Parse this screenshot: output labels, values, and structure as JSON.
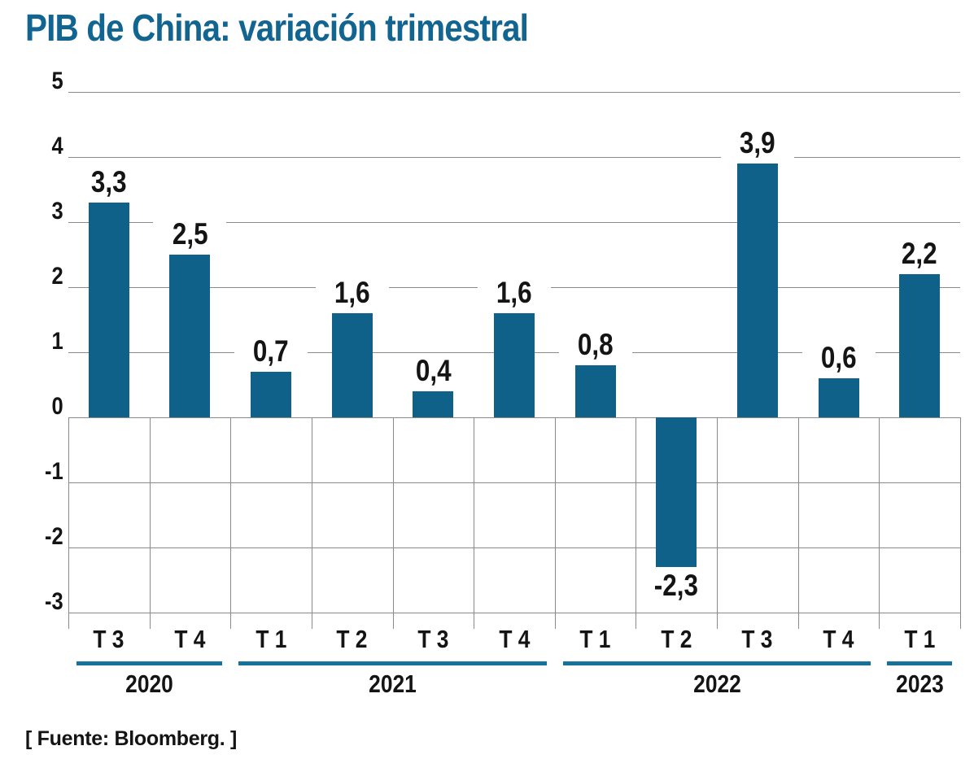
{
  "title": "PIB de China: variación trimestral",
  "source_note": "[ Fuente: Bloomberg. ]",
  "colors": {
    "bar_teal": "#0f6189",
    "title_teal": "#116590",
    "underline_teal": "#16719b",
    "gridline_gray": "#8a8a8a",
    "text_black": "#141414"
  },
  "chart_data": {
    "type": "bar",
    "title": "PIB de China: variación trimestral",
    "xlabel": "",
    "ylabel": "",
    "ylim": [
      -3,
      5
    ],
    "y_ticks": [
      5,
      4,
      3,
      2,
      1,
      0,
      -1,
      -2,
      -3
    ],
    "y_tick_labels": [
      "5",
      "4",
      "3",
      "2",
      "1",
      "0",
      "-1",
      "-2",
      "-3"
    ],
    "grid": "horizontal gridlines across plot; vertical column grid only below zero",
    "legend": "none",
    "categories": [
      "T 3",
      "T 4",
      "T 1",
      "T 2",
      "T 3",
      "T 4",
      "T 1",
      "T 2",
      "T 3",
      "T 4",
      "T 1"
    ],
    "values": [
      3.3,
      2.5,
      0.7,
      1.6,
      0.4,
      1.6,
      0.8,
      -2.3,
      3.9,
      0.6,
      2.2
    ],
    "value_labels": [
      "3,3",
      "2,5",
      "0,7",
      "1,6",
      "0,4",
      "1,6",
      "0,8",
      "-2,3",
      "3,9",
      "0,6",
      "2,2"
    ],
    "year_groups": [
      {
        "label": "2020",
        "quarters": 2
      },
      {
        "label": "2021",
        "quarters": 4
      },
      {
        "label": "2022",
        "quarters": 4
      },
      {
        "label": "2023",
        "quarters": 1
      }
    ],
    "source": "[ Fuente: Bloomberg. ]"
  }
}
